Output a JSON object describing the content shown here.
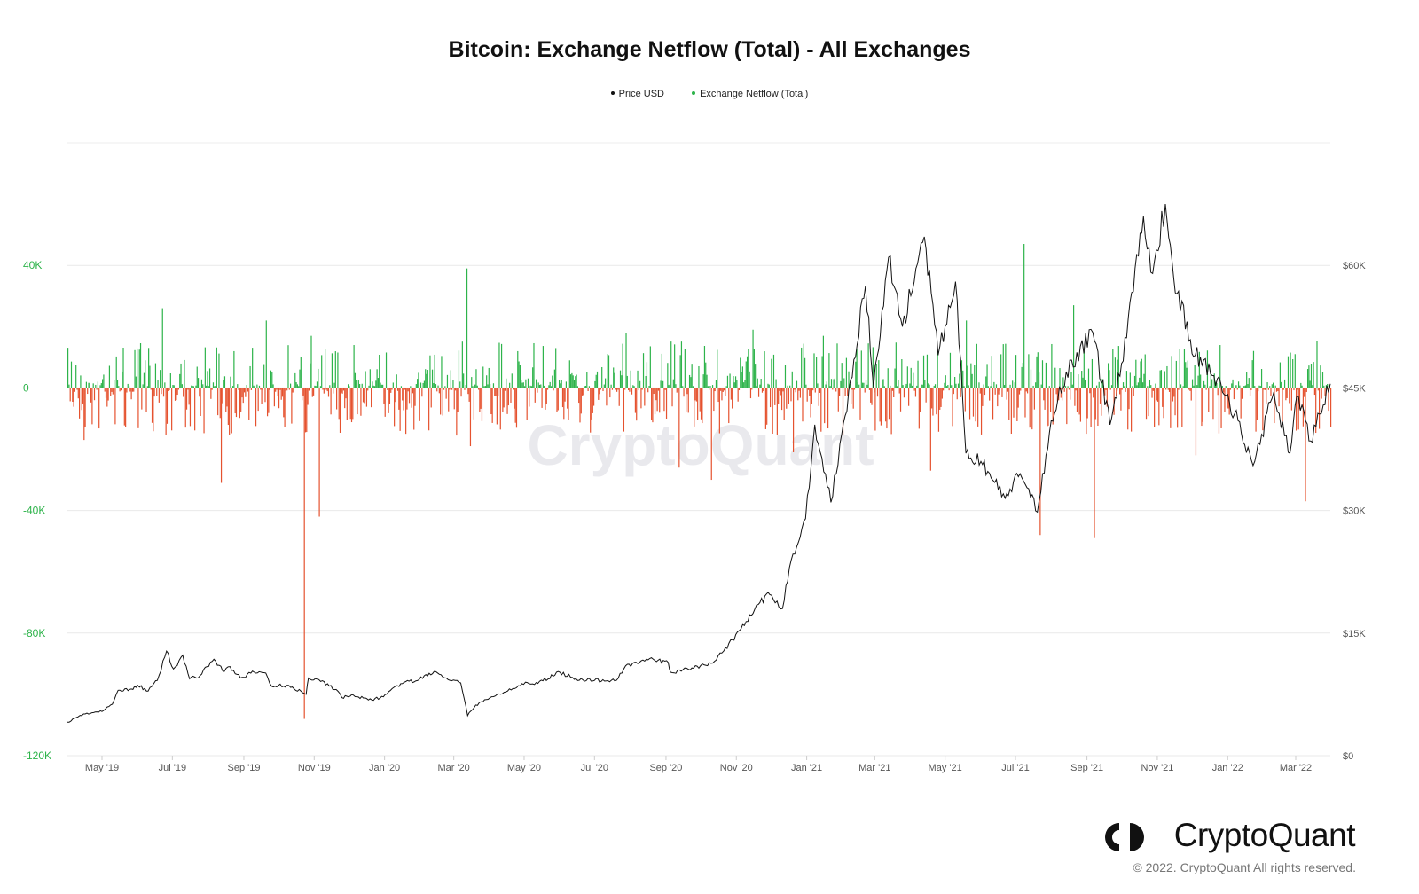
{
  "chart_data": {
    "type": "bar",
    "title": "Bitcoin: Exchange Netflow (Total) - All Exchanges",
    "legend": [
      "Price USD",
      "Exchange Netflow (Total)"
    ],
    "legend_position": "top-center",
    "grid": true,
    "x_ticks": [
      "May '19",
      "Jul '19",
      "Sep '19",
      "Nov '19",
      "Jan '20",
      "Mar '20",
      "May '20",
      "Jul '20",
      "Sep '20",
      "Nov '20",
      "Jan '21",
      "Mar '21",
      "May '21",
      "Jul '21",
      "Sep '21",
      "Nov '21",
      "Jan '22",
      "Mar '22"
    ],
    "x_range": [
      "2019-04-01",
      "2022-03-31"
    ],
    "y_left": {
      "label": "",
      "ticks": [
        "40K",
        "0",
        "-40K",
        "-80K",
        "-120K"
      ],
      "tick_values": [
        40000,
        0,
        -40000,
        -80000,
        -120000
      ],
      "range": [
        -120000,
        80000
      ]
    },
    "y_right": {
      "label": "",
      "ticks": [
        "$60K",
        "$45K",
        "$30K",
        "$15K",
        "$0"
      ],
      "tick_values": [
        60000,
        45000,
        30000,
        15000,
        0
      ],
      "range": [
        0,
        75000
      ]
    },
    "netflow_spikes": [
      {
        "date": "2019-04-15",
        "value": -17000
      },
      {
        "date": "2019-06-22",
        "value": 26000
      },
      {
        "date": "2019-08-12",
        "value": -31000
      },
      {
        "date": "2019-09-20",
        "value": 22000
      },
      {
        "date": "2019-10-23",
        "value": -108000
      },
      {
        "date": "2019-10-29",
        "value": 17000
      },
      {
        "date": "2019-11-05",
        "value": -42000
      },
      {
        "date": "2019-12-05",
        "value": 14000
      },
      {
        "date": "2020-03-12",
        "value": 39000
      },
      {
        "date": "2020-03-15",
        "value": -19000
      },
      {
        "date": "2020-04-25",
        "value": 12000
      },
      {
        "date": "2020-07-28",
        "value": 18000
      },
      {
        "date": "2020-09-12",
        "value": -26000
      },
      {
        "date": "2020-10-10",
        "value": -30000
      },
      {
        "date": "2020-11-15",
        "value": 19000
      },
      {
        "date": "2020-12-20",
        "value": -21000
      },
      {
        "date": "2021-01-15",
        "value": 17000
      },
      {
        "date": "2021-04-18",
        "value": -27000
      },
      {
        "date": "2021-05-19",
        "value": 22000
      },
      {
        "date": "2021-07-08",
        "value": 47000
      },
      {
        "date": "2021-07-22",
        "value": -48000
      },
      {
        "date": "2021-08-20",
        "value": 27000
      },
      {
        "date": "2021-09-07",
        "value": -49000
      },
      {
        "date": "2021-12-04",
        "value": -22000
      },
      {
        "date": "2022-03-09",
        "value": -37000
      }
    ],
    "series": [
      {
        "name": "Price USD",
        "color": "#111111",
        "points": [
          [
            "2019-04-01",
            4100
          ],
          [
            "2019-04-15",
            5100
          ],
          [
            "2019-05-01",
            5400
          ],
          [
            "2019-05-10",
            6300
          ],
          [
            "2019-05-15",
            8000
          ],
          [
            "2019-05-25",
            8100
          ],
          [
            "2019-06-01",
            8600
          ],
          [
            "2019-06-10",
            7900
          ],
          [
            "2019-06-18",
            9200
          ],
          [
            "2019-06-26",
            12800
          ],
          [
            "2019-07-02",
            10600
          ],
          [
            "2019-07-10",
            12300
          ],
          [
            "2019-07-16",
            9400
          ],
          [
            "2019-07-25",
            9800
          ],
          [
            "2019-08-06",
            11800
          ],
          [
            "2019-08-15",
            10300
          ],
          [
            "2019-08-20",
            10900
          ],
          [
            "2019-08-29",
            9500
          ],
          [
            "2019-09-10",
            10200
          ],
          [
            "2019-09-20",
            10100
          ],
          [
            "2019-09-25",
            8500
          ],
          [
            "2019-10-10",
            8600
          ],
          [
            "2019-10-25",
            7500
          ],
          [
            "2019-10-27",
            9500
          ],
          [
            "2019-11-05",
            9300
          ],
          [
            "2019-11-20",
            8100
          ],
          [
            "2019-11-25",
            7100
          ],
          [
            "2019-12-05",
            7400
          ],
          [
            "2019-12-18",
            6800
          ],
          [
            "2019-12-31",
            7200
          ],
          [
            "2020-01-15",
            8800
          ],
          [
            "2020-01-31",
            9300
          ],
          [
            "2020-02-13",
            10300
          ],
          [
            "2020-02-25",
            9300
          ],
          [
            "2020-03-07",
            8900
          ],
          [
            "2020-03-13",
            4900
          ],
          [
            "2020-03-20",
            6200
          ],
          [
            "2020-04-06",
            7300
          ],
          [
            "2020-04-29",
            8800
          ],
          [
            "2020-05-10",
            8700
          ],
          [
            "2020-06-01",
            10200
          ],
          [
            "2020-06-15",
            9400
          ],
          [
            "2020-07-01",
            9200
          ],
          [
            "2020-07-20",
            9200
          ],
          [
            "2020-07-28",
            11000
          ],
          [
            "2020-08-15",
            11800
          ],
          [
            "2020-09-03",
            11400
          ],
          [
            "2020-09-05",
            10200
          ],
          [
            "2020-09-25",
            10700
          ],
          [
            "2020-10-10",
            11300
          ],
          [
            "2020-10-21",
            12800
          ],
          [
            "2020-11-05",
            15500
          ],
          [
            "2020-11-20",
            18500
          ],
          [
            "2020-11-30",
            19700
          ],
          [
            "2020-12-11",
            18000
          ],
          [
            "2020-12-17",
            23000
          ],
          [
            "2020-12-31",
            29000
          ],
          [
            "2021-01-08",
            40500
          ],
          [
            "2021-01-22",
            31000
          ],
          [
            "2021-02-08",
            46000
          ],
          [
            "2021-02-21",
            57500
          ],
          [
            "2021-02-28",
            45000
          ],
          [
            "2021-03-13",
            61000
          ],
          [
            "2021-03-25",
            52500
          ],
          [
            "2021-04-13",
            63500
          ],
          [
            "2021-04-25",
            49000
          ],
          [
            "2021-05-10",
            58000
          ],
          [
            "2021-05-19",
            37000
          ],
          [
            "2021-06-01",
            36000
          ],
          [
            "2021-06-22",
            31500
          ],
          [
            "2021-07-05",
            34500
          ],
          [
            "2021-07-20",
            29800
          ],
          [
            "2021-08-01",
            41000
          ],
          [
            "2021-08-14",
            47000
          ],
          [
            "2021-09-06",
            51800
          ],
          [
            "2021-09-21",
            40500
          ],
          [
            "2021-10-01",
            48000
          ],
          [
            "2021-10-20",
            66000
          ],
          [
            "2021-10-28",
            59000
          ],
          [
            "2021-11-08",
            67500
          ],
          [
            "2021-11-18",
            56500
          ],
          [
            "2021-12-04",
            49000
          ],
          [
            "2021-12-20",
            46500
          ],
          [
            "2022-01-10",
            41000
          ],
          [
            "2022-01-23",
            35500
          ],
          [
            "2022-02-10",
            44500
          ],
          [
            "2022-02-24",
            37000
          ],
          [
            "2022-03-02",
            44000
          ],
          [
            "2022-03-14",
            38500
          ],
          [
            "2022-03-31",
            45500
          ]
        ]
      },
      {
        "name": "Exchange Netflow (Total)",
        "color_positive": "#2db34a",
        "color_negative": "#e5522f"
      }
    ]
  },
  "watermark": "CryptoQuant",
  "logo": {
    "text": "CryptoQuant",
    "icon": "cryptoquant-logo-icon"
  },
  "copyright": "© 2022. CryptoQuant All rights reserved."
}
